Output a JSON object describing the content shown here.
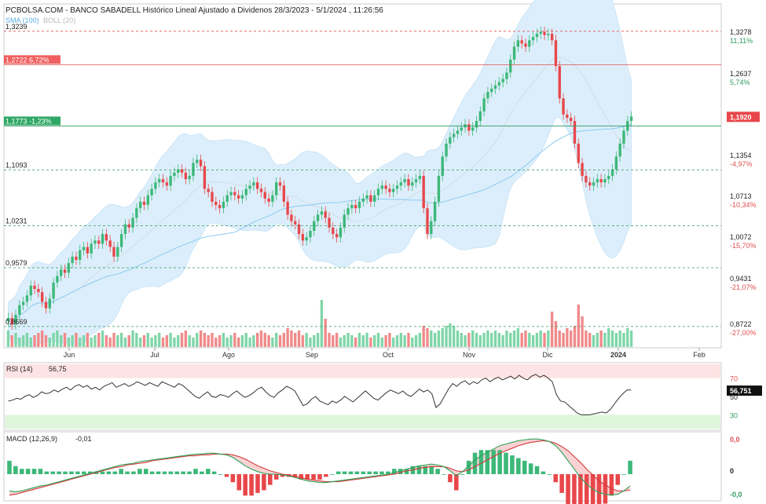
{
  "header": {
    "title": "PCBOLSA.COM - BANCO SABADELL Histórico Lineal Ajustado a Dividenos 28/3/2023 - 5/1/2024 , 11:26:56",
    "sma_label": "SMA (100)",
    "boll_label": "BOLL (20)"
  },
  "colors": {
    "up": "#3cb878",
    "down": "#e8474a",
    "volume_up": "#7fd6a8",
    "volume_down": "#f08a8a",
    "band_fill": "#dceefb",
    "sma": "#8ccbf0",
    "rsi_line": "#333333",
    "macd_line": "#d23a3a",
    "signal_line": "#2da35a",
    "rsi_overbought": "#fde3e3",
    "rsi_oversold": "#dff6dc"
  },
  "chart_data": [
    {
      "type": "candlestick",
      "title": "BANCO SABADELL",
      "y_range": [
        0.84,
        1.348
      ],
      "price_scale_labels": [
        {
          "price": "1,3278",
          "pct": "11,11%",
          "pct_color": "green"
        },
        {
          "price": "1,2637",
          "pct": "5,74%",
          "pct_color": "green"
        },
        {
          "price": "1,1996",
          "pct": "",
          "pct_color": ""
        },
        {
          "price": "1,1354",
          "pct": "-4,97%",
          "pct_color": "red"
        },
        {
          "price": "1,0713",
          "pct": "-10,34%",
          "pct_color": "red"
        },
        {
          "price": "1,0072",
          "pct": "-15,70%",
          "pct_color": "red"
        },
        {
          "price": "0,9431",
          "pct": "-21,07%",
          "pct_color": "red"
        },
        {
          "price": "0,8722",
          "pct": "-27,00%",
          "pct_color": "red"
        }
      ],
      "current_price": "1,1920",
      "reference_levels": [
        {
          "label": "1,3239",
          "value": 1.3239,
          "style": "dashed-red"
        },
        {
          "label": "1,2722 6,72%",
          "value": 1.2722,
          "style": "solid-red"
        },
        {
          "label": "1,1773 -1,23%",
          "value": 1.1773,
          "style": "solid-green"
        },
        {
          "label": "1,1093",
          "value": 1.1093,
          "style": "dashed-green"
        },
        {
          "label": "1,0231",
          "value": 1.0231,
          "style": "dashed-green"
        },
        {
          "label": "0,9579",
          "value": 0.9579,
          "style": "dashed-green"
        },
        {
          "label": "0,8669",
          "value": 0.8669,
          "style": "dashed-green"
        }
      ],
      "x_labels": [
        "Jun",
        "Jul",
        "Ago",
        "Sep",
        "Oct",
        "Nov",
        "Dic",
        "2024",
        "Feb"
      ],
      "close_series": [
        0.88,
        0.87,
        0.885,
        0.9,
        0.905,
        0.915,
        0.93,
        0.925,
        0.92,
        0.905,
        0.895,
        0.91,
        0.935,
        0.945,
        0.955,
        0.95,
        0.965,
        0.975,
        0.97,
        0.985,
        0.99,
        0.98,
        0.995,
        1.0,
        0.995,
        1.01,
        1.0,
        0.99,
        0.975,
        0.99,
        1.01,
        1.025,
        1.02,
        1.035,
        1.05,
        1.06,
        1.055,
        1.07,
        1.08,
        1.09,
        1.095,
        1.09,
        1.085,
        1.1,
        1.105,
        1.11,
        1.105,
        1.095,
        1.1,
        1.12,
        1.125,
        1.115,
        1.08,
        1.075,
        1.06,
        1.055,
        1.05,
        1.06,
        1.07,
        1.075,
        1.07,
        1.065,
        1.07,
        1.08,
        1.085,
        1.09,
        1.08,
        1.075,
        1.065,
        1.06,
        1.07,
        1.09,
        1.085,
        1.06,
        1.04,
        1.03,
        1.025,
        1.01,
        1.0,
        1.005,
        1.015,
        1.03,
        1.04,
        1.045,
        1.035,
        1.02,
        1.01,
        1.005,
        1.02,
        1.04,
        1.05,
        1.055,
        1.05,
        1.06,
        1.065,
        1.07,
        1.06,
        1.07,
        1.08,
        1.085,
        1.08,
        1.075,
        1.08,
        1.085,
        1.09,
        1.095,
        1.085,
        1.09,
        1.095,
        1.1,
        1.05,
        1.01,
        1.03,
        1.06,
        1.1,
        1.13,
        1.15,
        1.16,
        1.165,
        1.17,
        1.175,
        1.18,
        1.17,
        1.175,
        1.185,
        1.2,
        1.22,
        1.23,
        1.235,
        1.24,
        1.245,
        1.25,
        1.26,
        1.28,
        1.3,
        1.31,
        1.305,
        1.3,
        1.31,
        1.315,
        1.32,
        1.323,
        1.318,
        1.32,
        1.31,
        1.27,
        1.22,
        1.195,
        1.19,
        1.185,
        1.15,
        1.12,
        1.1,
        1.09,
        1.085,
        1.09,
        1.095,
        1.09,
        1.095,
        1.1,
        1.11,
        1.13,
        1.15,
        1.17,
        1.185,
        1.192
      ],
      "volume_series": [
        0.35,
        0.25,
        0.3,
        0.2,
        0.25,
        0.3,
        0.2,
        0.25,
        0.3,
        0.35,
        0.25,
        0.2,
        0.3,
        0.35,
        0.25,
        0.3,
        0.2,
        0.25,
        0.3,
        0.2,
        0.25,
        0.3,
        0.2,
        0.25,
        0.3,
        0.35,
        0.25,
        0.2,
        0.3,
        0.25,
        0.3,
        0.2,
        0.25,
        0.35,
        0.3,
        0.2,
        0.25,
        0.3,
        0.2,
        0.25,
        0.3,
        0.2,
        0.25,
        0.3,
        0.2,
        0.25,
        0.3,
        0.35,
        0.25,
        0.2,
        0.3,
        0.35,
        0.3,
        0.25,
        0.3,
        0.2,
        0.25,
        0.3,
        0.2,
        0.25,
        0.3,
        0.2,
        0.25,
        0.3,
        0.2,
        0.25,
        0.3,
        0.35,
        0.3,
        0.25,
        0.2,
        0.3,
        0.25,
        0.3,
        0.4,
        0.35,
        0.3,
        0.35,
        0.25,
        0.3,
        0.2,
        0.25,
        0.3,
        1.0,
        0.6,
        0.3,
        0.25,
        0.3,
        0.2,
        0.25,
        0.3,
        0.25,
        0.2,
        0.3,
        0.25,
        0.3,
        0.2,
        0.25,
        0.3,
        0.2,
        0.25,
        0.3,
        0.2,
        0.25,
        0.3,
        0.25,
        0.3,
        0.2,
        0.25,
        0.3,
        0.45,
        0.4,
        0.35,
        0.3,
        0.35,
        0.4,
        0.45,
        0.5,
        0.45,
        0.35,
        0.3,
        0.25,
        0.3,
        0.35,
        0.3,
        0.25,
        0.3,
        0.35,
        0.3,
        0.35,
        0.3,
        0.25,
        0.35,
        0.3,
        0.35,
        0.4,
        0.3,
        0.35,
        0.3,
        0.25,
        0.3,
        0.35,
        0.3,
        0.35,
        0.75,
        0.55,
        0.35,
        0.3,
        0.4,
        0.35,
        0.45,
        0.9,
        0.65,
        0.35,
        0.3,
        0.25,
        0.3,
        0.35,
        0.3,
        0.4,
        0.35,
        0.3,
        0.35,
        0.3,
        0.4,
        0.35
      ]
    },
    {
      "type": "line",
      "title": "RSI (14)",
      "value_label": "56,75",
      "current_value": "56,751",
      "y_range": [
        15,
        85
      ],
      "levels": [
        {
          "label": "70",
          "value": 70
        },
        {
          "label": "30",
          "value": 30
        },
        {
          "label": "50",
          "value": 50
        }
      ],
      "series": [
        {
          "values": [
            45,
            46,
            48,
            47,
            50,
            52,
            49,
            51,
            55,
            53,
            54,
            57,
            55,
            58,
            60,
            57,
            61,
            63,
            60,
            62,
            58,
            60,
            57,
            61,
            63,
            65,
            60,
            62,
            64,
            61,
            63,
            66,
            64,
            62,
            65,
            63,
            61,
            66,
            64,
            62,
            60,
            64,
            62,
            58,
            54,
            50,
            48,
            52,
            55,
            50,
            49,
            52,
            51,
            49,
            53,
            56,
            52,
            49,
            51,
            54,
            58,
            60,
            55,
            51,
            49,
            54,
            57,
            61,
            59,
            56,
            48,
            40,
            42,
            47,
            50,
            45,
            43,
            41,
            45,
            43,
            46,
            50,
            47,
            44,
            48,
            52,
            56,
            52,
            48,
            46,
            50,
            54,
            57,
            55,
            53,
            56,
            52,
            50,
            54,
            58,
            55,
            57,
            53,
            38,
            42,
            50,
            58,
            64,
            61,
            65,
            67,
            63,
            66,
            64,
            68,
            70,
            66,
            69,
            71,
            68,
            70,
            72,
            69,
            73,
            70,
            68,
            72,
            74,
            71,
            73,
            70,
            66,
            52,
            45,
            44,
            40,
            36,
            32,
            30,
            30,
            30,
            31,
            32,
            33,
            32,
            36,
            42,
            48,
            53,
            57,
            57
          ]
        }
      ]
    },
    {
      "type": "line",
      "title": "MACD (12,26,9)",
      "value_label": "-0,01",
      "y_labels": [
        "0,0",
        "0",
        "-0,0"
      ],
      "series": [
        {
          "values": [
            -0.02,
            -0.021,
            -0.02,
            -0.018,
            -0.016,
            -0.014,
            -0.013,
            -0.011,
            -0.009,
            -0.007,
            -0.005,
            -0.003,
            -0.001,
            0.001,
            0.003,
            0.005,
            0.007,
            0.009,
            0.011,
            0.012,
            0.013,
            0.015,
            0.016,
            0.017,
            0.018,
            0.019,
            0.02,
            0.021,
            0.022,
            0.023,
            0.024,
            0.024,
            0.025,
            0.025,
            0.024,
            0.023,
            0.02,
            0.015,
            0.01,
            0.006,
            0.003,
            0.001,
            0.0,
            0.0,
            -0.001,
            -0.002,
            -0.004,
            -0.006,
            -0.008,
            -0.009,
            -0.01,
            -0.01,
            -0.009,
            -0.008,
            -0.007,
            -0.006,
            -0.005,
            -0.004,
            -0.003,
            -0.002,
            -0.001,
            0.0,
            0.002,
            0.004,
            0.006,
            0.008,
            0.01,
            0.011,
            0.012,
            0.011,
            0.009,
            0.004,
            -0.002,
            0.003,
            0.01,
            0.017,
            0.022,
            0.026,
            0.03,
            0.034,
            0.036,
            0.038,
            0.04,
            0.041,
            0.042,
            0.042,
            0.041,
            0.039,
            0.034,
            0.026,
            0.016,
            0.006,
            -0.004,
            -0.012,
            -0.018,
            -0.022,
            -0.024,
            -0.025,
            -0.024,
            -0.02,
            -0.014
          ]
        },
        {
          "values": [
            -0.025,
            -0.024,
            -0.022,
            -0.02,
            -0.018,
            -0.016,
            -0.014,
            -0.012,
            -0.01,
            -0.008,
            -0.006,
            -0.004,
            -0.002,
            0.0,
            0.002,
            0.004,
            0.006,
            0.008,
            0.009,
            0.011,
            0.012,
            0.013,
            0.014,
            0.016,
            0.017,
            0.018,
            0.019,
            0.02,
            0.021,
            0.022,
            0.022,
            0.023,
            0.023,
            0.024,
            0.024,
            0.024,
            0.023,
            0.021,
            0.018,
            0.014,
            0.01,
            0.007,
            0.004,
            0.002,
            0.0,
            -0.001,
            -0.003,
            -0.004,
            -0.006,
            -0.007,
            -0.008,
            -0.009,
            -0.009,
            -0.009,
            -0.008,
            -0.007,
            -0.006,
            -0.005,
            -0.004,
            -0.003,
            -0.002,
            -0.001,
            0.0,
            0.002,
            0.004,
            0.005,
            0.007,
            0.008,
            0.009,
            0.009,
            0.009,
            0.007,
            0.004,
            0.003,
            0.005,
            0.009,
            0.013,
            0.017,
            0.021,
            0.025,
            0.028,
            0.031,
            0.034,
            0.036,
            0.038,
            0.039,
            0.04,
            0.039,
            0.037,
            0.033,
            0.028,
            0.021,
            0.014,
            0.006,
            -0.001,
            -0.008,
            -0.013,
            -0.017,
            -0.02,
            -0.02,
            -0.019
          ]
        }
      ]
    }
  ]
}
